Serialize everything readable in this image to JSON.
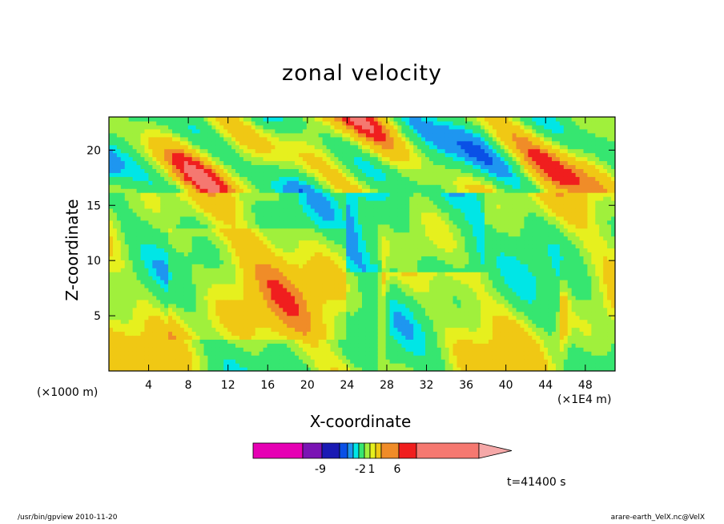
{
  "chart_data": {
    "type": "heatmap",
    "title": "zonal velocity",
    "xlabel": "X-coordinate",
    "ylabel": "Z-coordinate",
    "x_unit": "(×1E4 m)",
    "y_unit": "(×1000 m)",
    "xlim": [
      0,
      51
    ],
    "ylim": [
      0,
      23
    ],
    "x_ticks": [
      4,
      8,
      12,
      16,
      20,
      24,
      28,
      32,
      36,
      40,
      44,
      48
    ],
    "y_ticks": [
      5,
      10,
      15,
      20
    ],
    "colorbar": {
      "colors": [
        "#e600b4",
        "#7a14b4",
        "#1a1ab4",
        "#0a50e6",
        "#1e96f0",
        "#00e6e6",
        "#36e670",
        "#a0f03c",
        "#e6f01e",
        "#f0c814",
        "#f08c28",
        "#f01e1e",
        "#f57870",
        "#f5a8a8"
      ],
      "tick_labels": [
        "-9",
        "-2",
        "1",
        "6"
      ]
    },
    "annotation": "t=41400 s"
  },
  "footer": {
    "left": "/usr/bin/gpview  2010-11-20",
    "right": "arare-earth_VelX.nc@VelX"
  }
}
